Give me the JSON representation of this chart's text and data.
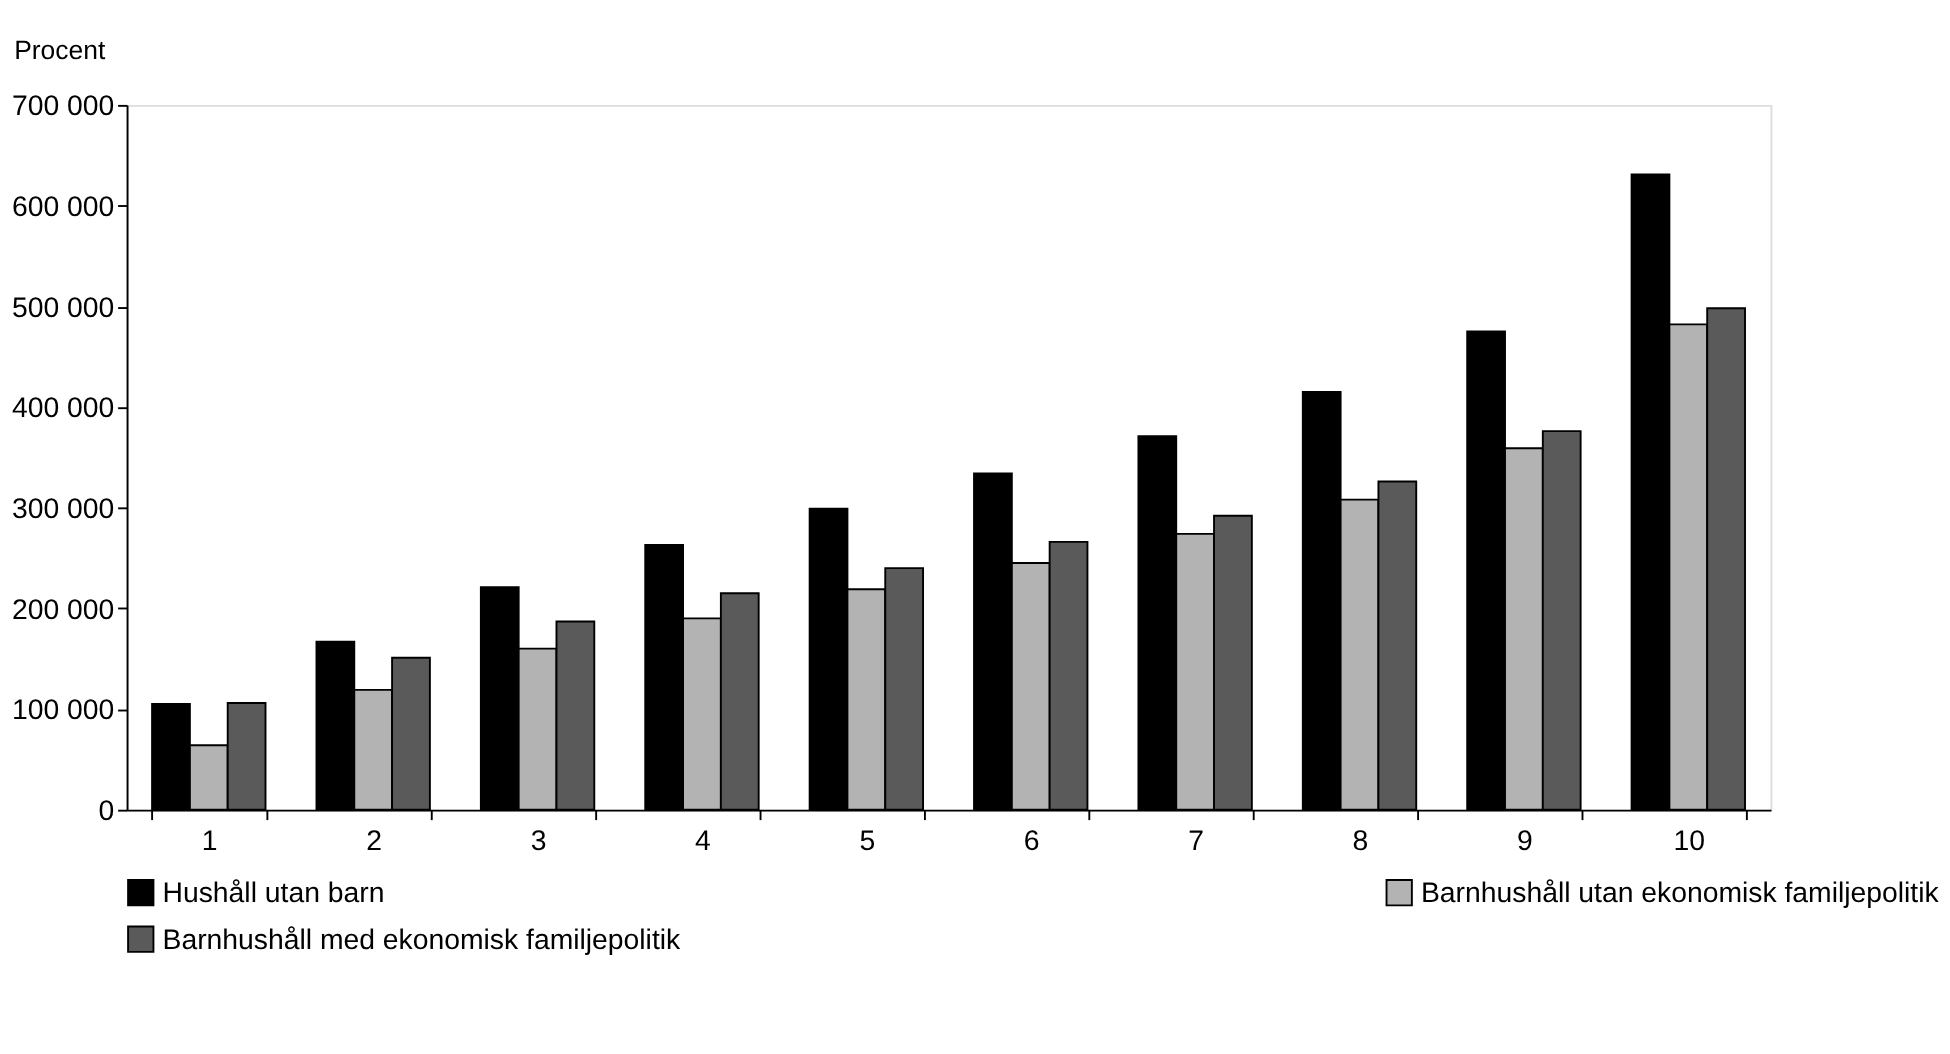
{
  "chart_data": {
    "type": "bar",
    "ylabel": "Procent",
    "categories": [
      "1",
      "2",
      "3",
      "4",
      "5",
      "6",
      "7",
      "8",
      "9",
      "10"
    ],
    "series": [
      {
        "name": "Hushåll utan barn",
        "color": "#000000",
        "values": [
          105000,
          167000,
          221000,
          263000,
          299000,
          334000,
          371000,
          415000,
          475000,
          631000
        ]
      },
      {
        "name": "Barnhushåll utan ekonomisk familjepolitik",
        "color": "#b3b3b3",
        "values": [
          64000,
          119000,
          160000,
          190000,
          219000,
          245000,
          274000,
          308000,
          359000,
          482000
        ]
      },
      {
        "name": "Barnhushåll med ekonomisk familjepolitik",
        "color": "#5a5a5a",
        "values": [
          106000,
          151000,
          187000,
          215000,
          240000,
          266000,
          292000,
          326000,
          376000,
          498000
        ]
      }
    ],
    "ylim": [
      0,
      700000
    ],
    "yticks": [
      {
        "value": 0,
        "label": "0"
      },
      {
        "value": 100000,
        "label": "100 000"
      },
      {
        "value": 200000,
        "label": "200 000"
      },
      {
        "value": 300000,
        "label": "300 000"
      },
      {
        "value": 400000,
        "label": "400 000"
      },
      {
        "value": 500000,
        "label": "500 000"
      },
      {
        "value": 600000,
        "label": "600 000"
      },
      {
        "value": 700000,
        "label": "700 000"
      }
    ],
    "grid": false,
    "legend": "bottom"
  }
}
